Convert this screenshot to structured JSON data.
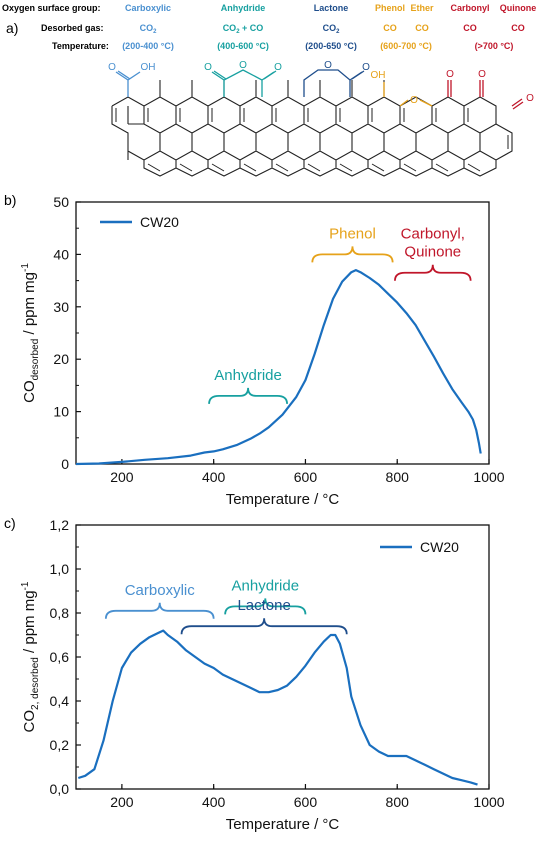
{
  "colors": {
    "carboxylic": "#4a90d0",
    "anhydride": "#17a0a0",
    "lactone": "#1f4e8c",
    "phenol": "#e6a21a",
    "ether": "#e6a21a",
    "carbonyl": "#c0162a",
    "quinone": "#c0162a",
    "curve": "#1a6fbf",
    "ink": "#111111"
  },
  "panel_a": {
    "label": "a)",
    "row_headers": {
      "group": "Oxygen surface group:",
      "gas": "Desorbed gas:",
      "temperature": "Temperature:"
    },
    "groups": [
      {
        "name": "Carboxylic",
        "gas": "CO",
        "gas_sub": "2",
        "temp": "(200-400 °C)",
        "color_key": "carboxylic"
      },
      {
        "name": "Anhydride",
        "gas": "CO",
        "gas_sub": "2",
        "gas_tail": " + CO",
        "temp": "(400-600 °C)",
        "color_key": "anhydride"
      },
      {
        "name": "Lactone",
        "gas": "CO",
        "gas_sub": "2",
        "temp": "(200-650 °C)",
        "color_key": "lactone"
      },
      {
        "name": "Phenol",
        "gas": "CO",
        "color_key": "phenol"
      },
      {
        "name": "Ether",
        "gas": "CO",
        "color_key": "ether"
      },
      {
        "name": "Carbonyl",
        "gas": "CO",
        "color_key": "carbonyl"
      },
      {
        "name": "Quinone",
        "gas": "CO",
        "color_key": "quinone"
      }
    ],
    "shared_temps": [
      {
        "text": "(600-700 °C)",
        "color_key": "phenol"
      },
      {
        "text": "(>700 °C)",
        "color_key": "carbonyl"
      }
    ],
    "structure_atoms": {
      "carboxylic_o": "O",
      "carboxylic_oh": "OH",
      "anhydride_o": "O",
      "lactone_o": "O",
      "phenol_oh": "OH",
      "ether_o": "O",
      "carbonyl_o": "O",
      "quinone_o": "O"
    }
  },
  "chart_data": [
    {
      "panel_label": "b)",
      "type": "line",
      "xlabel": "Temperature / °C",
      "ylabel": "CO",
      "ylabel_sub": "desorbed",
      "ylabel_tail": " / ppm mg",
      "ylabel_sup": "-1",
      "xlim": [
        100,
        1000
      ],
      "ylim": [
        0,
        50
      ],
      "xticks": [
        200,
        400,
        600,
        800,
        1000
      ],
      "yticks": [
        0,
        10,
        20,
        30,
        40,
        50
      ],
      "ytick_labels": [
        "0",
        "10",
        "20",
        "30",
        "40",
        "50"
      ],
      "legend": "CW20",
      "legend_position": "top-left",
      "series": [
        {
          "name": "CW20",
          "x": [
            100,
            150,
            200,
            250,
            300,
            350,
            380,
            400,
            420,
            450,
            480,
            500,
            520,
            550,
            580,
            600,
            620,
            640,
            660,
            680,
            700,
            710,
            720,
            740,
            760,
            780,
            800,
            820,
            840,
            860,
            880,
            900,
            920,
            940,
            955,
            965,
            972,
            978,
            982
          ],
          "y": [
            0,
            0.1,
            0.4,
            0.8,
            1.1,
            1.6,
            2.2,
            2.4,
            2.8,
            3.6,
            4.8,
            5.8,
            7.0,
            9.4,
            12.8,
            16.0,
            21.0,
            26.5,
            31.5,
            34.8,
            36.6,
            37.0,
            36.6,
            35.5,
            34.2,
            32.5,
            30.8,
            28.8,
            26.5,
            23.5,
            20.5,
            17.3,
            14.3,
            11.8,
            10.0,
            8.5,
            6.5,
            4.0,
            2.0
          ]
        }
      ],
      "annotations": [
        {
          "text": "Anhydride",
          "x_from": 390,
          "x_to": 560,
          "y": 13,
          "color_key": "anhydride"
        },
        {
          "text": "Phenol",
          "x_from": 615,
          "x_to": 790,
          "y": 40,
          "color_key": "phenol"
        },
        {
          "text": "Carbonyl,",
          "text2": "Quinone",
          "x_from": 795,
          "x_to": 960,
          "y": 36.5,
          "color_key": "carbonyl"
        }
      ]
    },
    {
      "panel_label": "c)",
      "type": "line",
      "xlabel": "Temperature / °C",
      "ylabel": "CO",
      "ylabel_sub": "2, desorbed",
      "ylabel_tail": " / ppm mg",
      "ylabel_sup": "-1",
      "xlim": [
        100,
        1000
      ],
      "ylim": [
        0,
        1.2
      ],
      "xticks": [
        200,
        400,
        600,
        800,
        1000
      ],
      "yticks": [
        0,
        0.2,
        0.4,
        0.6,
        0.8,
        1.0,
        1.2
      ],
      "ytick_labels": [
        "0,0",
        "0,2",
        "0,4",
        "0,6",
        "0,8",
        "1,0",
        "1,2"
      ],
      "legend": "CW20",
      "legend_position": "top-right",
      "series": [
        {
          "name": "CW20",
          "x": [
            105,
            120,
            140,
            160,
            180,
            200,
            220,
            240,
            260,
            280,
            290,
            300,
            320,
            340,
            360,
            380,
            400,
            420,
            440,
            460,
            480,
            500,
            520,
            540,
            560,
            580,
            600,
            620,
            640,
            655,
            665,
            675,
            690,
            700,
            720,
            740,
            760,
            780,
            800,
            820,
            840,
            860,
            880,
            900,
            920,
            940,
            960,
            975
          ],
          "y": [
            0.05,
            0.06,
            0.09,
            0.22,
            0.4,
            0.55,
            0.62,
            0.66,
            0.69,
            0.71,
            0.72,
            0.7,
            0.67,
            0.63,
            0.6,
            0.57,
            0.55,
            0.52,
            0.5,
            0.48,
            0.46,
            0.44,
            0.44,
            0.45,
            0.47,
            0.51,
            0.56,
            0.62,
            0.67,
            0.7,
            0.7,
            0.66,
            0.55,
            0.42,
            0.29,
            0.2,
            0.17,
            0.15,
            0.15,
            0.15,
            0.13,
            0.11,
            0.09,
            0.07,
            0.05,
            0.04,
            0.03,
            0.02
          ]
        }
      ],
      "annotations": [
        {
          "text": "Carboxylic",
          "x_from": 165,
          "x_to": 400,
          "y": 0.81,
          "color_key": "carboxylic"
        },
        {
          "text": "Anhydride",
          "x_from": 425,
          "x_to": 600,
          "y": 0.83,
          "color_key": "anhydride"
        },
        {
          "text": "Lactone",
          "x_from": 330,
          "x_to": 690,
          "y": 0.74,
          "color_key": "lactone"
        }
      ]
    }
  ]
}
